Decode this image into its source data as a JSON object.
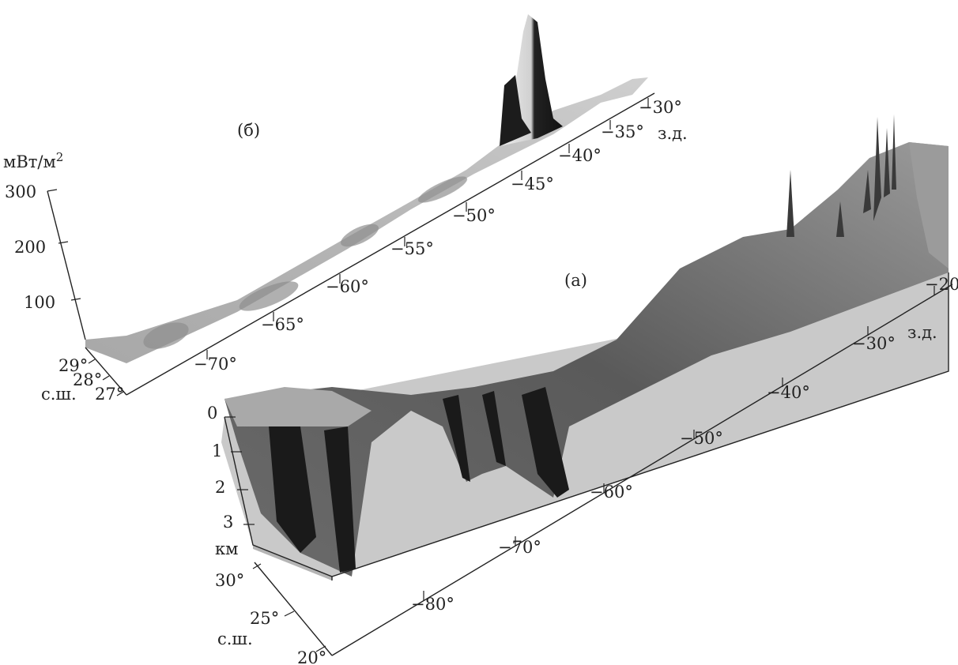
{
  "panel_a": {
    "label": "(а)",
    "lon_ticks": [
      "−20°",
      "−30°",
      "−40°",
      "−50°",
      "−60°",
      "−70°",
      "−80°"
    ],
    "lon_unit": "з.д.",
    "lat_ticks": [
      "30°",
      "25°",
      "20°"
    ],
    "lat_unit": "с.ш.",
    "depth_ticks": [
      "0",
      "1",
      "2",
      "3"
    ],
    "depth_unit": "км"
  },
  "panel_b": {
    "label": "(б)",
    "lon_ticks": [
      "−30°",
      "−35°",
      "−40°",
      "−45°",
      "−50°",
      "−55°",
      "−60°",
      "−65°",
      "−70°"
    ],
    "lon_unit": "з.д.",
    "lat_ticks": [
      "29°",
      "28°",
      "27°"
    ],
    "lat_unit": "с.ш.",
    "z_ticks": [
      "300",
      "200",
      "100"
    ],
    "z_unit_base": "мВт/м",
    "z_unit_exp": "2"
  },
  "colors": {
    "surface_dark": "#1e1e1e",
    "surface_mid": "#8c8c8c",
    "surface_light": "#d8d8d8",
    "face_gray": "#c8c8c8"
  }
}
